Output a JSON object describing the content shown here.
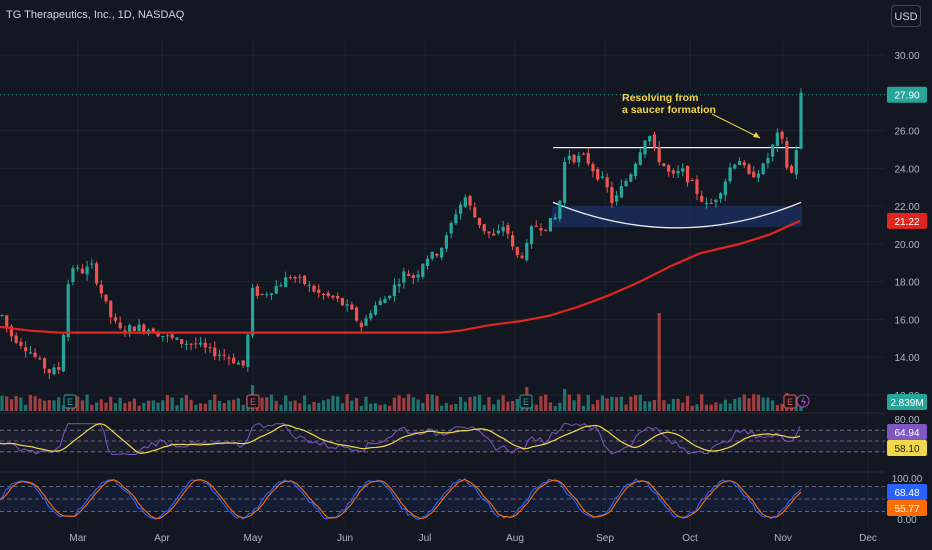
{
  "header": {
    "title": "TG Therapeutics, Inc., 1D, NASDAQ",
    "currency": "USD"
  },
  "annotation": {
    "line1": "Resolving from",
    "line2": "a saucer formation"
  },
  "colors": {
    "bg": "#131722",
    "up": "#26a69a",
    "down": "#ef5350",
    "ma": "#e0261f",
    "rsi": "#7e57c2",
    "rsi_ma": "#f0d84a",
    "stoch_k": "#2962ff",
    "stoch_d": "#ff6d00",
    "grid": "#1e222d",
    "text": "#b2b5be"
  },
  "icons": [
    "earnings-icon",
    "dividend-icon"
  ],
  "chart_data": [
    {
      "type": "candlestick",
      "title": "TG Therapeutics, Inc., 1D, NASDAQ",
      "x_ticks": [
        "Mar",
        "Apr",
        "May",
        "Jun",
        "Jul",
        "Aug",
        "Sep",
        "Oct",
        "Nov",
        "Dec"
      ],
      "y_ticks": [
        "12.00",
        "14.00",
        "16.00",
        "18.00",
        "20.00",
        "22.00",
        "24.00",
        "26.00",
        "30.00"
      ],
      "ylim": [
        11.2,
        30.8
      ],
      "last_price": "27.90",
      "ma_value": "21.22",
      "volume_value": "2.839M",
      "resistance_level": 25.1,
      "support_zone": [
        20.9,
        22.0
      ],
      "ma_series": [
        [
          0,
          15.6
        ],
        [
          30,
          15.4
        ],
        [
          60,
          15.3
        ],
        [
          100,
          15.3
        ],
        [
          150,
          15.3
        ],
        [
          200,
          15.3
        ],
        [
          250,
          15.3
        ],
        [
          300,
          15.3
        ],
        [
          350,
          15.3
        ],
        [
          400,
          15.3
        ],
        [
          440,
          15.3
        ],
        [
          460,
          15.4
        ],
        [
          490,
          15.7
        ],
        [
          520,
          15.9
        ],
        [
          550,
          16.2
        ],
        [
          580,
          16.7
        ],
        [
          610,
          17.3
        ],
        [
          640,
          18.0
        ],
        [
          670,
          18.8
        ],
        [
          700,
          19.5
        ],
        [
          740,
          20.0
        ],
        [
          770,
          20.5
        ],
        [
          800,
          21.22
        ]
      ],
      "price_path": [
        [
          2,
          16.2
        ],
        [
          10,
          15.2
        ],
        [
          20,
          14.8
        ],
        [
          30,
          14.3
        ],
        [
          40,
          13.7
        ],
        [
          50,
          13.2
        ],
        [
          60,
          13.4
        ],
        [
          70,
          18.9
        ],
        [
          80,
          18.5
        ],
        [
          92,
          18.8
        ],
        [
          100,
          17.6
        ],
        [
          110,
          16.2
        ],
        [
          120,
          15.4
        ],
        [
          135,
          15.6
        ],
        [
          150,
          15.5
        ],
        [
          165,
          15.1
        ],
        [
          180,
          14.8
        ],
        [
          195,
          14.7
        ],
        [
          210,
          14.3
        ],
        [
          225,
          14.1
        ],
        [
          245,
          13.5
        ],
        [
          252,
          17.5
        ],
        [
          262,
          17.3
        ],
        [
          275,
          17.7
        ],
        [
          290,
          18.3
        ],
        [
          305,
          17.9
        ],
        [
          320,
          17.3
        ],
        [
          335,
          17.1
        ],
        [
          350,
          16.5
        ],
        [
          362,
          15.6
        ],
        [
          372,
          16.6
        ],
        [
          385,
          17.1
        ],
        [
          395,
          17.8
        ],
        [
          405,
          18.5
        ],
        [
          415,
          18.2
        ],
        [
          425,
          19.3
        ],
        [
          435,
          19.4
        ],
        [
          445,
          20.1
        ],
        [
          455,
          21.6
        ],
        [
          465,
          22.5
        ],
        [
          475,
          21.4
        ],
        [
          485,
          20.7
        ],
        [
          495,
          20.3
        ],
        [
          505,
          21.1
        ],
        [
          515,
          19.3
        ],
        [
          525,
          19.5
        ],
        [
          533,
          21.0
        ],
        [
          545,
          20.9
        ],
        [
          558,
          21.5
        ],
        [
          566,
          24.9
        ],
        [
          575,
          24.5
        ],
        [
          585,
          24.6
        ],
        [
          595,
          23.8
        ],
        [
          605,
          23.2
        ],
        [
          613,
          22.1
        ],
        [
          622,
          23.0
        ],
        [
          632,
          23.9
        ],
        [
          640,
          25.0
        ],
        [
          648,
          26.0
        ],
        [
          655,
          24.8
        ],
        [
          663,
          24.2
        ],
        [
          672,
          23.5
        ],
        [
          682,
          23.9
        ],
        [
          690,
          23.3
        ],
        [
          700,
          22.5
        ],
        [
          708,
          21.9
        ],
        [
          716,
          22.5
        ],
        [
          724,
          23.2
        ],
        [
          732,
          24.3
        ],
        [
          740,
          24.5
        ],
        [
          748,
          23.5
        ],
        [
          756,
          23.8
        ],
        [
          764,
          24.1
        ],
        [
          772,
          25.1
        ],
        [
          780,
          26.0
        ],
        [
          786,
          24.2
        ],
        [
          791,
          23.6
        ],
        [
          796,
          24.9
        ],
        [
          801,
          27.9
        ]
      ],
      "candle_count": 170
    },
    {
      "type": "bar",
      "name": "Volume",
      "value": "2.839M",
      "spikes": [
        [
          251,
          2.6
        ],
        [
          526,
          2.4
        ],
        [
          566,
          2.2
        ],
        [
          660,
          9.8
        ],
        [
          786,
          1.8
        ]
      ]
    },
    {
      "type": "line",
      "name": "RSI",
      "ylim": [
        0,
        100
      ],
      "y_ticks": [
        "80.00"
      ],
      "levels": [
        70,
        50,
        30
      ],
      "values_label": [
        "64.94",
        "58.10"
      ]
    },
    {
      "type": "line",
      "name": "Stochastic",
      "ylim": [
        0,
        100
      ],
      "y_ticks": [
        "100.00",
        "0.00"
      ],
      "levels": [
        80,
        50,
        20
      ],
      "values_label": [
        "68.48",
        "55.77"
      ]
    }
  ]
}
